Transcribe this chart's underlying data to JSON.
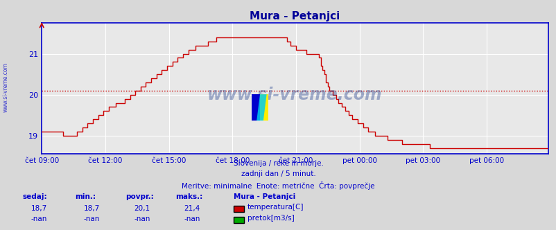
{
  "title": "Mura - Petanjci",
  "bg_color": "#d8d8d8",
  "plot_bg_color": "#e8e8e8",
  "line_color": "#cc0000",
  "grid_color": "#ffffff",
  "axis_color": "#0000cc",
  "dashed_line_color": "#cc0000",
  "dashed_line_value": 20.1,
  "title_color": "#000099",
  "watermark": "www.si-vreme.com",
  "watermark_color": "#1a3a8a",
  "subtitle_lines": [
    "Slovenija / reke in morje.",
    "zadnji dan / 5 minut.",
    "Meritve: minimalne  Enote: metrične  Črta: povprečje"
  ],
  "xtick_labels": [
    "čet 09:00",
    "čet 12:00",
    "čet 15:00",
    "čet 18:00",
    "čet 21:00",
    "pet 00:00",
    "pet 03:00",
    "pet 06:00"
  ],
  "xtick_positions": [
    0,
    36,
    72,
    108,
    144,
    180,
    216,
    252
  ],
  "ytick_labels": [
    "19",
    "20",
    "21"
  ],
  "ytick_values": [
    19,
    20,
    21
  ],
  "ylim": [
    18.55,
    21.75
  ],
  "xlim": [
    0,
    287
  ],
  "legend_station": "Mura - Petanjci",
  "legend_items": [
    {
      "color": "#cc0000",
      "label": "temperatura[C]"
    },
    {
      "color": "#00aa00",
      "label": "pretok[m3/s]"
    }
  ],
  "stats_headers": [
    "sedaj:",
    "min.:",
    "povpr.:",
    "maks.:"
  ],
  "stats_temp": [
    "18,7",
    "18,7",
    "20,1",
    "21,4"
  ],
  "stats_flow": [
    "-nan",
    "-nan",
    "-nan",
    "-nan"
  ]
}
